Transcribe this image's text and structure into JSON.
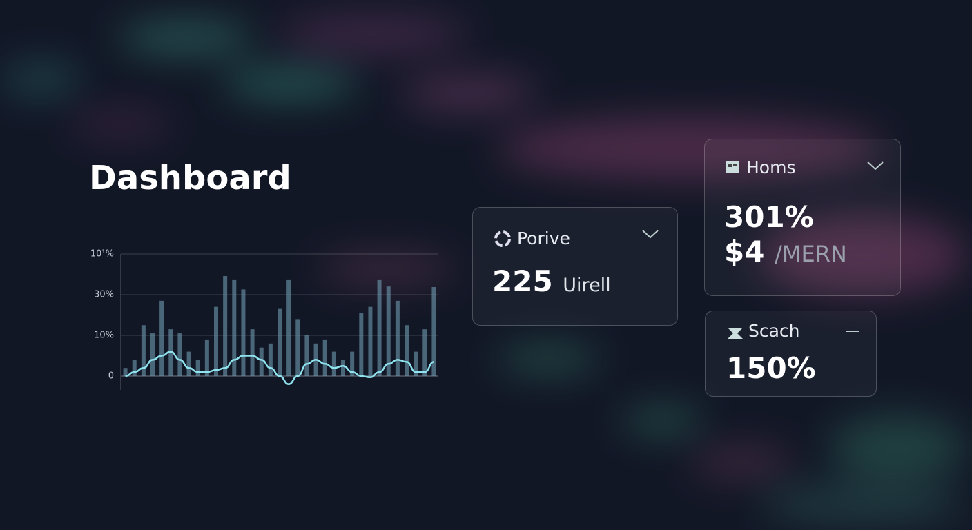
{
  "header": {
    "title": "Dashboard"
  },
  "chart_data": {
    "type": "bar-line",
    "categories": [
      null,
      null,
      null,
      null,
      null,
      null,
      null,
      null,
      null,
      null,
      null,
      null,
      null,
      null,
      null,
      null,
      null,
      null,
      null,
      null,
      null,
      null,
      null,
      null,
      null,
      null,
      null,
      null,
      null,
      null,
      null,
      null,
      null,
      null,
      null
    ],
    "series": [
      {
        "color": "#6f9db0",
        "values": [
          2,
          4,
          15,
          11,
          27,
          13,
          11,
          6,
          4,
          9,
          24,
          62,
          55,
          39,
          13,
          7,
          8,
          23,
          55,
          18,
          10,
          8,
          9,
          6,
          4,
          6,
          21,
          24,
          55,
          44,
          27,
          15,
          6,
          13,
          43
        ]
      },
      {
        "color": "#8fe3ee",
        "values": [
          0,
          1,
          2,
          4,
          5,
          6,
          4,
          2,
          1,
          1,
          1.5,
          2,
          4,
          5,
          5,
          4,
          2,
          0,
          -2,
          0,
          3,
          4,
          3,
          2,
          2.5,
          1,
          0,
          -0.3,
          1,
          3,
          4,
          3.5,
          1,
          1,
          3.5
        ]
      }
    ],
    "yticks": [
      0,
      {
        "value": 10,
        "label": "10%"
      },
      {
        "value": 30,
        "label": "30%"
      },
      {
        "value": 100,
        "label": "10¹%"
      }
    ],
    "grid": true
  },
  "cards": [
    {
      "title": "Porive",
      "value": "225",
      "unit": "Uirell"
    },
    {
      "title": "Homs",
      "value": "301%",
      "value2": "$4",
      "unit": "/MERN"
    },
    {
      "title": "Scach",
      "value": "150%"
    }
  ]
}
